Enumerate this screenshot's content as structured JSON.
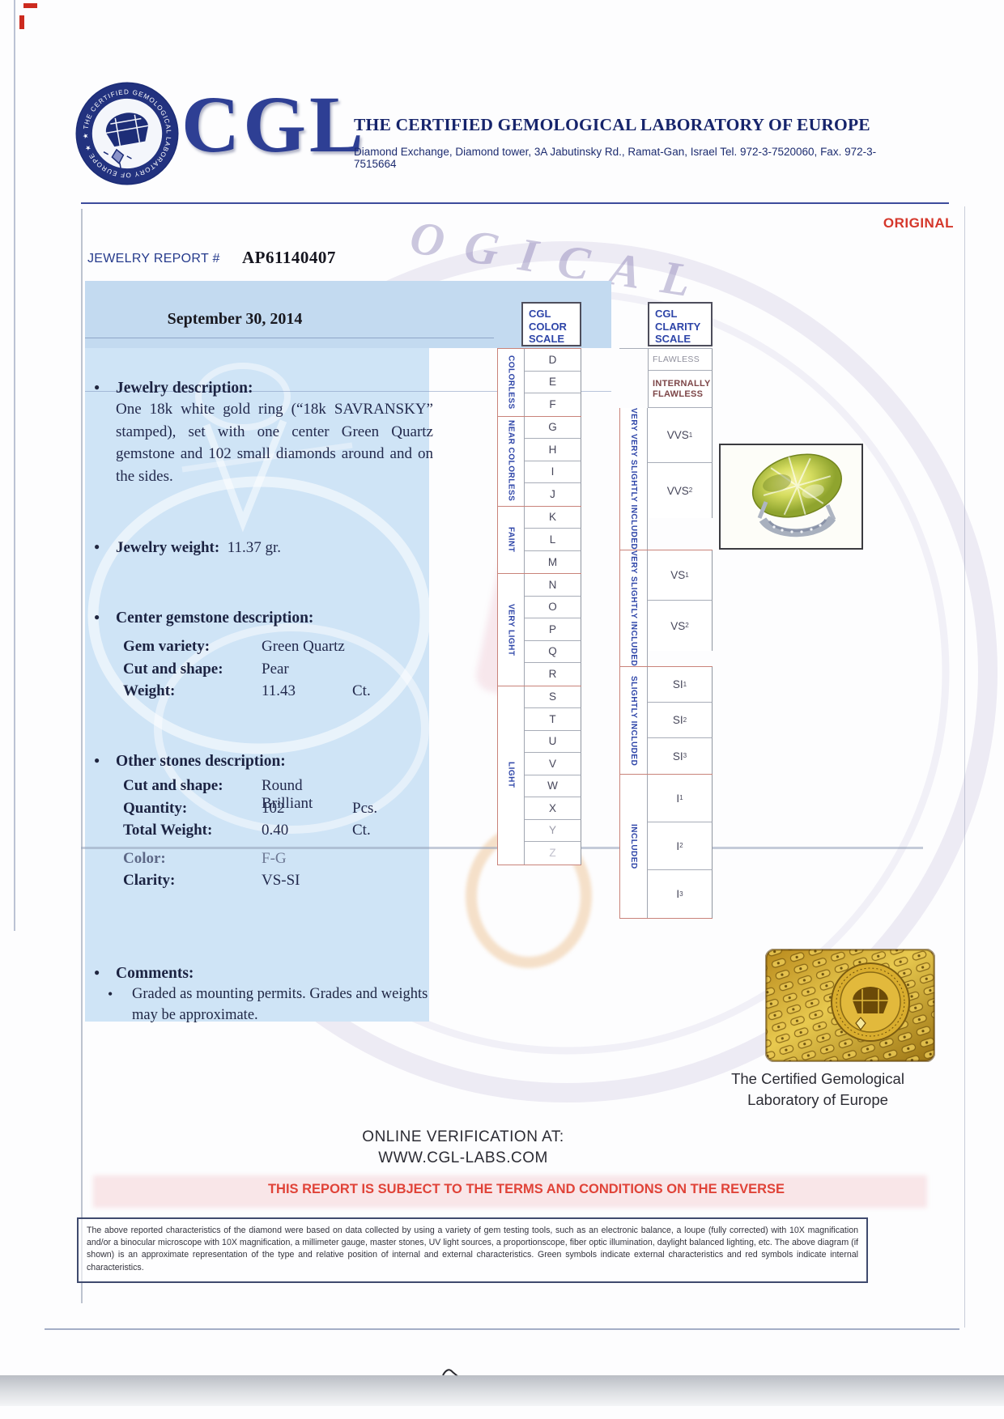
{
  "header": {
    "logo_text": "CGL",
    "seal_ring_text": "★ THE CERTIFIED GEMOLOGICAL LABORATORY OF EUROPE ★",
    "title": "THE CERTIFIED GEMOLOGICAL LABORATORY OF EUROPE",
    "address": "Diamond Exchange, Diamond tower, 3A Jabutinsky Rd., Ramat-Gan, Israel Tel. 972-3-7520060, Fax. 972-3-7515664",
    "original_label": "ORIGINAL"
  },
  "report": {
    "label": "JEWELRY REPORT #",
    "number": "AP61140407",
    "date": "September 30, 2014"
  },
  "sections": {
    "jewelry_description": {
      "heading": "Jewelry description:",
      "body": "One 18k white gold ring (“18k SAVRANSKY” stamped), set with one center Green Quartz gemstone and 102 small diamonds around and on the sides."
    },
    "jewelry_weight": {
      "label": "Jewelry weight:",
      "value": "11.37 gr."
    },
    "center_gemstone": {
      "heading": "Center gemstone description:",
      "rows": [
        {
          "label": "Gem variety:",
          "value": "Green Quartz",
          "unit": ""
        },
        {
          "label": "Cut and shape:",
          "value": "Pear",
          "unit": ""
        },
        {
          "label": "Weight:",
          "value": "11.43",
          "unit": "Ct."
        }
      ]
    },
    "other_stones": {
      "heading": "Other stones description:",
      "rows": [
        {
          "label": "Cut and shape:",
          "value": "Round Brilliant",
          "unit": ""
        },
        {
          "label": "Quantity:",
          "value": "102",
          "unit": "Pcs."
        },
        {
          "label": "Total Weight:",
          "value": "0.40",
          "unit": "Ct."
        },
        {
          "label": "Color:",
          "value": "F-G",
          "unit": ""
        },
        {
          "label": "Clarity:",
          "value": "VS-SI",
          "unit": ""
        }
      ]
    },
    "comments": {
      "heading": "Comments:",
      "body": "Graded as mounting permits. Grades and weights may be approximate."
    }
  },
  "color_scale": {
    "title_lines": [
      "CGL",
      "COLOR",
      "SCALE"
    ],
    "categories": [
      {
        "name": "COLORLESS",
        "grades": [
          "D",
          "E",
          "F"
        ]
      },
      {
        "name": "NEAR COLORLESS",
        "grades": [
          "G",
          "H",
          "I",
          "J"
        ]
      },
      {
        "name": "FAINT",
        "grades": [
          "K",
          "L",
          "M"
        ]
      },
      {
        "name": "VERY LIGHT",
        "grades": [
          "N",
          "O",
          "P",
          "Q",
          "R"
        ]
      },
      {
        "name": "LIGHT",
        "grades": [
          "S",
          "T",
          "U",
          "V",
          "W",
          "X",
          "Y",
          "Z"
        ]
      }
    ]
  },
  "clarity_scale": {
    "title_lines": [
      "CGL",
      "CLARITY",
      "SCALE"
    ],
    "plain_rows": [
      {
        "lines": [
          "FLAWLESS"
        ]
      },
      {
        "lines": [
          "INTERNALLY",
          "FLAWLESS"
        ]
      }
    ],
    "categories": [
      {
        "name": "VERY VERY SLIGHTLY INCLUDED",
        "grades": [
          {
            "base": "VVS",
            "sub": "1"
          },
          {
            "base": "VVS",
            "sub": "2"
          }
        ]
      },
      {
        "name": "VERY SLIGHTLY INCLUDED",
        "grades": [
          {
            "base": "VS",
            "sub": "1"
          },
          {
            "base": "VS",
            "sub": "2"
          }
        ]
      },
      {
        "name": "SLIGHTLY INCLUDED",
        "grades": [
          {
            "base": "SI",
            "sub": "1"
          },
          {
            "base": "SI",
            "sub": "2"
          },
          {
            "base": "SI",
            "sub": "3"
          }
        ]
      },
      {
        "name": "INCLUDED",
        "grades": [
          {
            "base": "I",
            "sub": "1"
          },
          {
            "base": "I",
            "sub": "2"
          },
          {
            "base": "I",
            "sub": "3"
          }
        ]
      }
    ]
  },
  "footer": {
    "seal_caption_line1": "The Certified Gemological",
    "seal_caption_line2": "Laboratory of Europe",
    "verification_line1": "ONLINE VERIFICATION AT:",
    "verification_line2": "WWW.CGL-LABS.COM",
    "terms_notice": "THIS REPORT IS SUBJECT TO THE TERMS AND CONDITIONS ON THE REVERSE",
    "fine_print": "The above reported characteristics of the diamond were based on data collected by using a variety of gem testing tools, such as an electronic balance, a loupe (fully corrected) with 10X magnification and/or a binocular microscope with 10X magnification, a millimeter gauge, master stones, UV light sources, a proportionscope, fiber optic illumination, daylight balanced lighting, etc. The above diagram (if shown) is an approximate representation of the type and relative position of internal and external characteristics. Green symbols indicate external characteristics and red symbols indicate internal characteristics."
  },
  "colors": {
    "navy": "#16246b",
    "accent_red": "#d5372b",
    "panel_blue": "#cfe4f6",
    "scale_blue": "#2e45a8",
    "gold": "#d4a828"
  }
}
